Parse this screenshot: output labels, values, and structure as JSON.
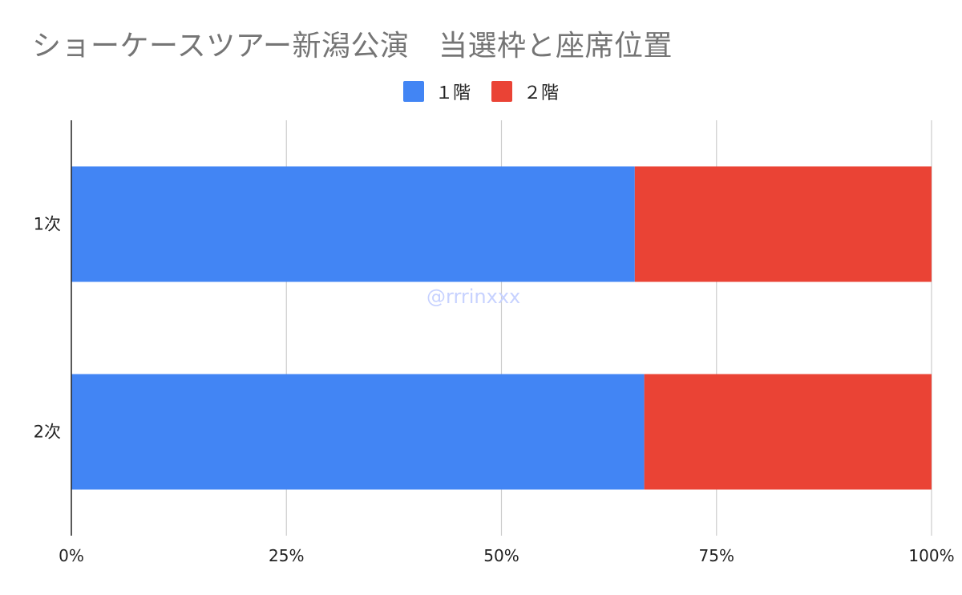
{
  "chart_data": {
    "type": "bar",
    "orientation": "horizontal",
    "stacked": "percent",
    "title": "ショーケースツアー新潟公演　当選枠と座席位置",
    "categories": [
      "1次",
      "2次"
    ],
    "series": [
      {
        "name": "１階",
        "color": "#4285f4",
        "values": [
          0.655,
          0.666
        ]
      },
      {
        "name": "２階",
        "color": "#ea4335",
        "values": [
          0.345,
          0.334
        ]
      }
    ],
    "x_ticks": [
      "0%",
      "25%",
      "50%",
      "75%",
      "100%"
    ],
    "xlim": [
      0,
      1
    ],
    "grid": true,
    "legend_position": "top-center",
    "watermark": "@rrrinxxx"
  }
}
